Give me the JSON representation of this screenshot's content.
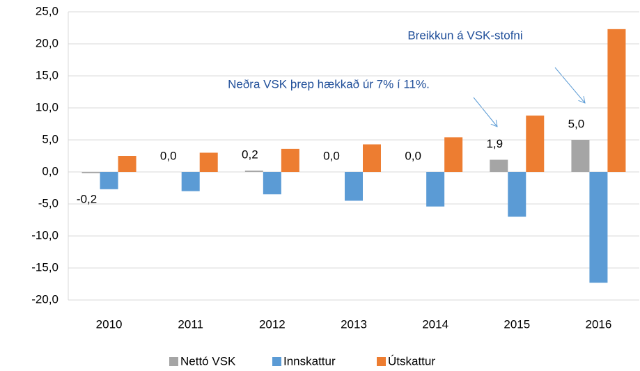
{
  "chart_data": {
    "type": "bar",
    "categories": [
      "2010",
      "2011",
      "2012",
      "2013",
      "2014",
      "2015",
      "2016"
    ],
    "series": [
      {
        "name": "Nettó VSK",
        "color": "#a5a5a5",
        "values": [
          -0.2,
          0.0,
          0.2,
          0.0,
          0.0,
          1.9,
          5.0
        ],
        "value_labels": [
          "-0,2",
          "0,0",
          "0,2",
          "0,0",
          "0,0",
          "1,9",
          "5,0"
        ]
      },
      {
        "name": "Innskattur",
        "color": "#5b9bd5",
        "values": [
          -2.7,
          -3.0,
          -3.5,
          -4.5,
          -5.4,
          -7.0,
          -17.3
        ]
      },
      {
        "name": "Útskattur",
        "color": "#ed7d31",
        "values": [
          2.5,
          3.0,
          3.6,
          4.3,
          5.4,
          8.8,
          22.3
        ]
      }
    ],
    "ylim": [
      -20,
      25
    ],
    "yticks": [
      {
        "value": -20,
        "label": "-20,0"
      },
      {
        "value": -15,
        "label": "-15,0"
      },
      {
        "value": -10,
        "label": "-10,0"
      },
      {
        "value": -5,
        "label": "-5,0"
      },
      {
        "value": 0,
        "label": "0,0"
      },
      {
        "value": 5,
        "label": "5,0"
      },
      {
        "value": 10,
        "label": "10,0"
      },
      {
        "value": 15,
        "label": "15,0"
      },
      {
        "value": 20,
        "label": "20,0"
      },
      {
        "value": 25,
        "label": "25,0"
      }
    ],
    "grid": true,
    "legend": "bottom",
    "annotations": [
      "Breikkun á VSK-stofni",
      "Neðra VSK þrep hækkað úr 7% í 11%."
    ]
  }
}
